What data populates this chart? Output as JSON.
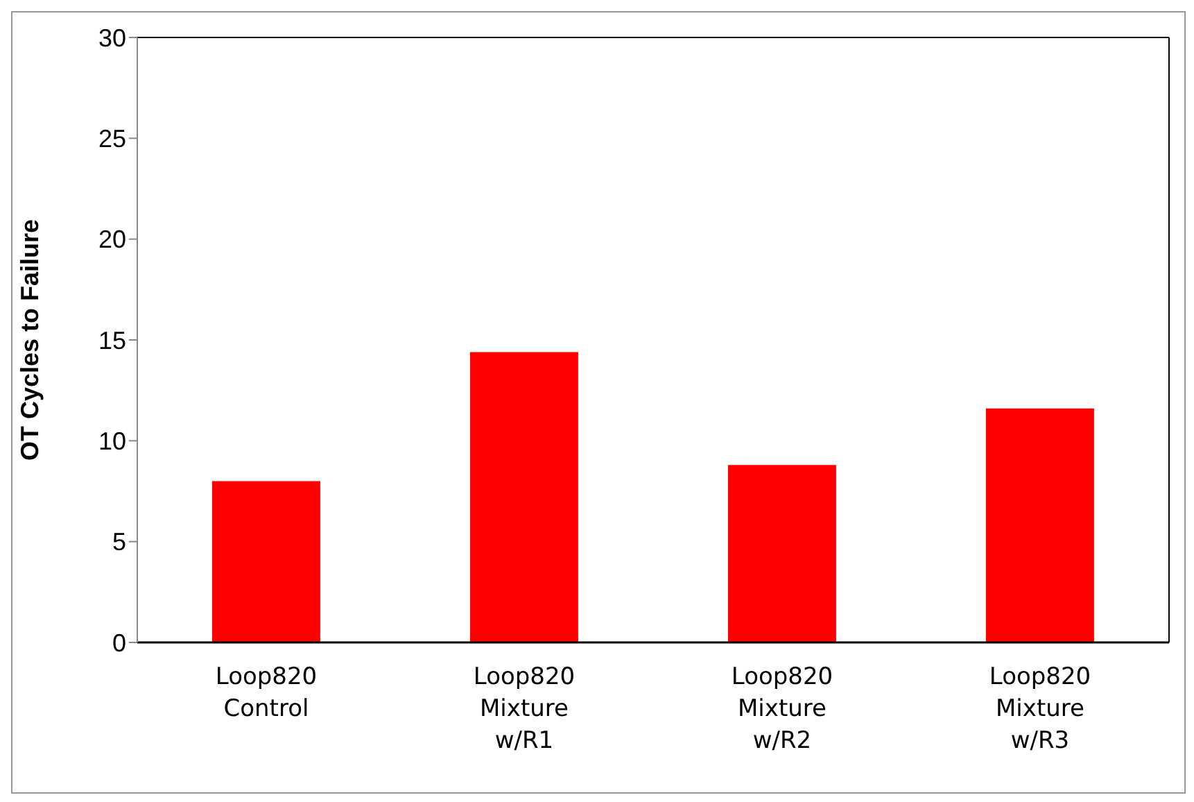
{
  "chart_data": {
    "type": "bar",
    "ylabel": "OT Cycles to Failure",
    "categories": [
      "Loop820 Control",
      "Loop820 Mixture w/R1",
      "Loop820 Mixture w/R2",
      "Loop820 Mixture w/R3"
    ],
    "values": [
      8,
      14.4,
      8.8,
      11.6
    ],
    "color": "#ff0000",
    "ylim": [
      0,
      30
    ],
    "yticks": [
      0,
      5,
      10,
      15,
      20,
      25,
      30
    ],
    "grid": false
  }
}
